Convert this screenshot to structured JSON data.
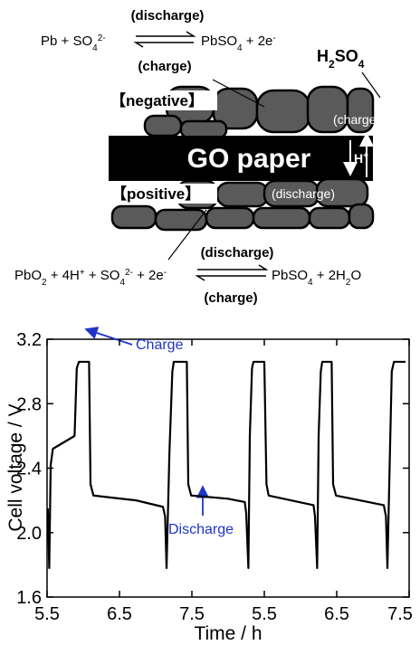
{
  "diagram": {
    "negative_equation": {
      "left": [
        "Pb + SO",
        "4",
        "2-"
      ],
      "above": "(discharge)",
      "below": "(charge)",
      "right": [
        "PbSO",
        "4",
        " + 2e",
        "-"
      ]
    },
    "positive_equation": {
      "left": [
        "PbO",
        "2",
        " + 4H",
        "+",
        " + SO",
        "4",
        "2-",
        " + 2e",
        "-"
      ],
      "above": "(discharge)",
      "below": "(charge)",
      "right": [
        "PbSO",
        "4",
        " + 2H",
        "2",
        "O"
      ]
    },
    "electrolyte": [
      "H",
      "2",
      "SO",
      "4"
    ],
    "negative_label": "【negative】",
    "positive_label": "【positive】",
    "separator_label": "GO paper",
    "ion": [
      "H",
      "+"
    ],
    "charge_label": "(charge)",
    "discharge_label": "(discharge)"
  },
  "chart_data": [
    {
      "type": "line",
      "x_label": "Time / h",
      "y_label": "Cell voltage / V",
      "color": "#000000",
      "x": [
        5.51,
        5.53,
        5.55,
        5.58,
        5.88,
        5.91,
        5.94,
        6.08,
        6.1,
        6.14,
        6.73,
        7.1,
        7.13,
        7.15,
        7.19,
        7.23,
        7.25,
        7.43,
        7.45,
        7.49,
        8.0
      ],
      "values": [
        2.15,
        1.78,
        2.42,
        2.52,
        2.6,
        3.02,
        3.06,
        3.06,
        2.3,
        2.23,
        2.2,
        2.16,
        2.1,
        1.78,
        2.5,
        3.0,
        3.06,
        3.06,
        2.3,
        2.23,
        2.21
      ],
      "xlim": [
        5.5,
        8.0
      ],
      "xticks": [
        5.5,
        6.5,
        7.5
      ],
      "ylim": [
        1.6,
        3.2
      ],
      "yticks": [
        1.6,
        {
          "value": 2,
          "label": "2.0"
        },
        2.4,
        2.8,
        3.2
      ],
      "annotations": [
        "Charge",
        "Discharge"
      ],
      "annotation_color": "#1f35c8"
    },
    {
      "type": "line",
      "color": "#000000",
      "x": [
        5.0,
        5.23,
        5.25,
        5.28,
        5.3,
        5.33,
        5.35,
        5.5,
        5.53,
        5.56,
        6.18,
        6.2,
        6.23,
        6.25,
        6.28,
        6.3,
        6.43,
        6.45,
        6.49,
        7.15,
        7.18,
        7.2,
        7.24,
        7.26,
        7.29,
        7.45
      ],
      "values": [
        2.21,
        2.19,
        2.12,
        1.78,
        2.6,
        3.02,
        3.06,
        3.06,
        2.3,
        2.23,
        2.17,
        2.1,
        1.78,
        2.6,
        3.0,
        3.06,
        3.06,
        2.3,
        2.23,
        2.17,
        2.1,
        1.78,
        2.6,
        3.0,
        3.06,
        3.06
      ],
      "xlim": [
        5.0,
        7.5
      ],
      "xticks": [
        5.5,
        6.5,
        7.5
      ],
      "ylim": [
        1.6,
        3.2
      ]
    }
  ]
}
